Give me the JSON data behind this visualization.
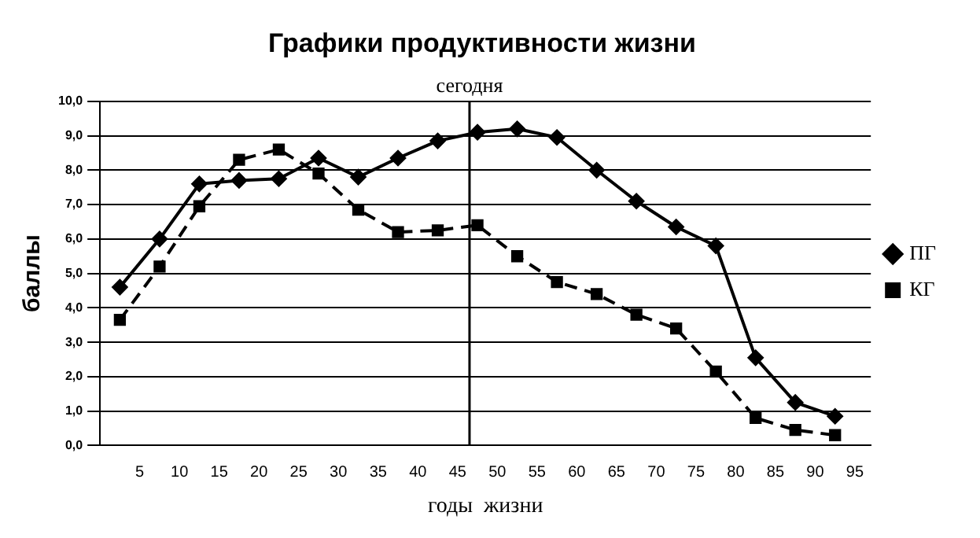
{
  "chart_data": {
    "type": "line",
    "title": "Графики продуктивности жизни",
    "xlabel": "годы  жизни",
    "ylabel": "баллы",
    "x": [
      2.5,
      7.5,
      12.5,
      17.5,
      22.5,
      27.5,
      32.5,
      37.5,
      42.5,
      47.5,
      52.5,
      57.5,
      62.5,
      67.5,
      72.5,
      77.5,
      82.5,
      87.5,
      92.5
    ],
    "series": [
      {
        "name": "ПГ",
        "color": "#000000",
        "marker": "diamond",
        "line_style": "solid",
        "values": [
          4.6,
          6.0,
          7.6,
          7.7,
          7.75,
          8.35,
          7.8,
          8.35,
          8.85,
          9.1,
          9.2,
          8.95,
          8.0,
          7.1,
          6.35,
          5.8,
          2.55,
          1.25,
          0.85
        ]
      },
      {
        "name": "КГ",
        "color": "#000000",
        "marker": "square",
        "line_style": "dashed",
        "values": [
          3.65,
          5.2,
          6.95,
          8.3,
          8.6,
          7.9,
          6.85,
          6.2,
          6.25,
          6.4,
          5.5,
          4.75,
          4.4,
          3.8,
          3.4,
          2.15,
          0.8,
          0.45,
          0.3
        ]
      }
    ],
    "xlim": [
      0,
      97
    ],
    "xticks": [
      5,
      10,
      15,
      20,
      25,
      30,
      35,
      40,
      45,
      50,
      55,
      60,
      65,
      70,
      75,
      80,
      85,
      90,
      95
    ],
    "ylim": [
      0,
      10
    ],
    "yticks": [
      {
        "value": 0,
        "label": "0,0"
      },
      {
        "value": 1,
        "label": "1,0"
      },
      {
        "value": 2,
        "label": "2,0"
      },
      {
        "value": 3,
        "label": "3,0"
      },
      {
        "value": 4,
        "label": "4,0"
      },
      {
        "value": 5,
        "label": "5,0"
      },
      {
        "value": 6,
        "label": "6,0"
      },
      {
        "value": 7,
        "label": "7,0"
      },
      {
        "value": 8,
        "label": "8,0"
      },
      {
        "value": 9,
        "label": "9,0"
      },
      {
        "value": 10,
        "label": "10,0"
      }
    ],
    "ref_lines": [
      {
        "axis": "x",
        "value": 46.5,
        "label": "сегодня",
        "color": "#000000"
      }
    ],
    "grid": "y",
    "legend": "right"
  }
}
